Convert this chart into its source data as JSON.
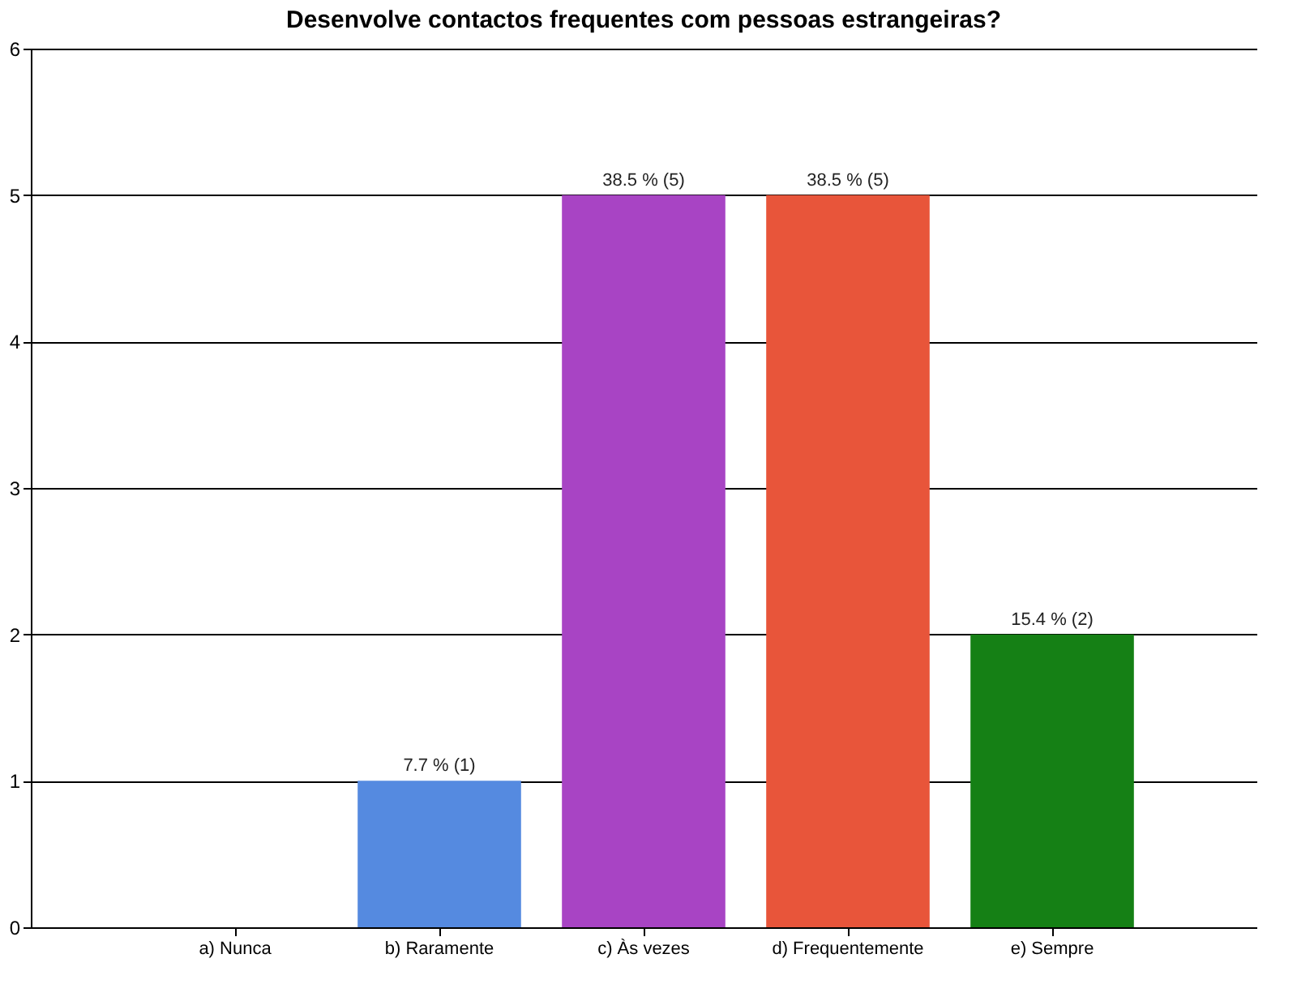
{
  "chart_data": {
    "type": "bar",
    "title": "Desenvolve contactos frequentes com pessoas estrangeiras?",
    "categories": [
      "a) Nunca",
      "b) Raramente",
      "c) Às vezes",
      "d) Frequentemente",
      "e) Sempre"
    ],
    "values": [
      0,
      1,
      5,
      5,
      2
    ],
    "colors": [
      "#808080",
      "#558ae0",
      "#a844c4",
      "#e8553a",
      "#158015"
    ],
    "value_labels": [
      null,
      "7.7 % (1)",
      "38.5 % (5)",
      "38.5 % (5)",
      "15.4 % (2)"
    ],
    "ylim": [
      0,
      6
    ],
    "yticks": [
      0,
      1,
      2,
      3,
      4,
      5,
      6
    ],
    "grid": "y",
    "legend": false
  }
}
